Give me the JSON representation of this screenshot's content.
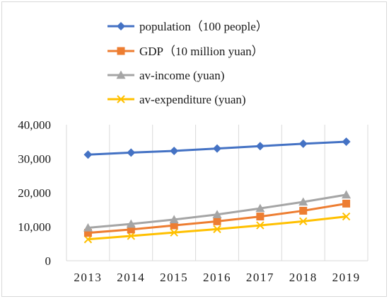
{
  "chart_data": {
    "type": "line",
    "title": "",
    "xlabel": "",
    "ylabel": "",
    "categories": [
      "2013",
      "2014",
      "2015",
      "2016",
      "2017",
      "2018",
      "2019"
    ],
    "ylim": [
      0,
      40000
    ],
    "yticks": [
      0,
      10000,
      20000,
      30000,
      40000
    ],
    "ytick_labels": [
      "0",
      "10,000",
      "20,000",
      "30,000",
      "40,000"
    ],
    "grid": "vertical",
    "legend_position": "top",
    "series": [
      {
        "name": "population（100 people）",
        "color": "#4472C4",
        "marker": "diamond",
        "values": [
          31200,
          31800,
          32300,
          33000,
          33700,
          34400,
          35000
        ]
      },
      {
        "name": "GDP（10 million yuan）",
        "color": "#ED7D31",
        "marker": "square",
        "values": [
          8200,
          9200,
          10400,
          11600,
          13000,
          14700,
          16800
        ]
      },
      {
        "name": "av-income (yuan)",
        "color": "#A5A5A5",
        "marker": "triangle",
        "values": [
          9700,
          10800,
          12100,
          13600,
          15400,
          17300,
          19400
        ]
      },
      {
        "name": "av-expenditure (yuan)",
        "color": "#FFC000",
        "marker": "x",
        "values": [
          6300,
          7300,
          8300,
          9300,
          10400,
          11600,
          13000
        ]
      }
    ]
  }
}
